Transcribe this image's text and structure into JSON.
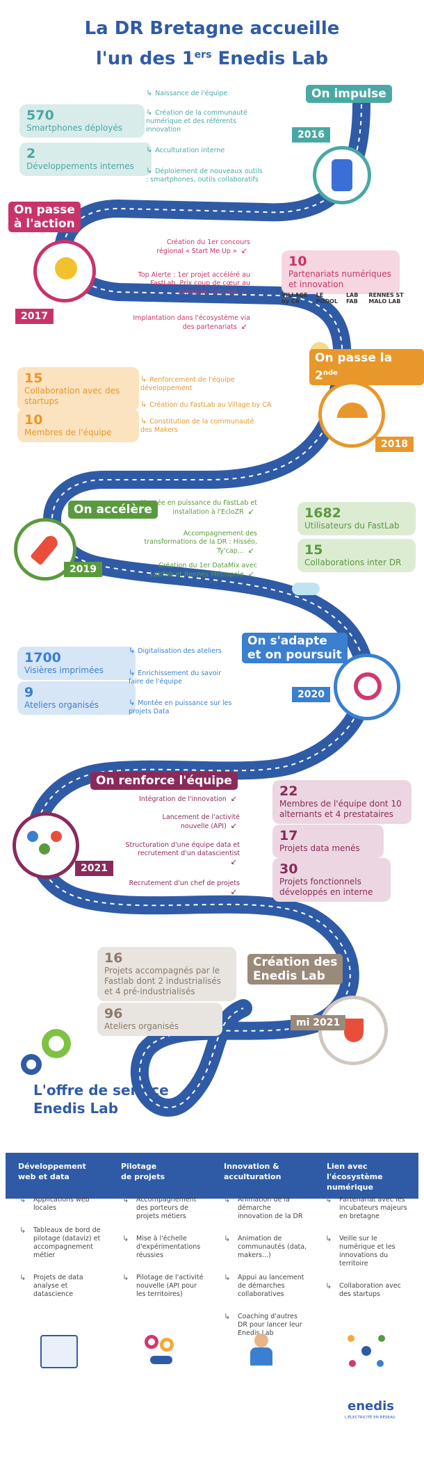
{
  "title": {
    "line1": "La DR Bretagne accueille",
    "line2_pre": "l'un des 1",
    "line2_sup": "ers",
    "line2_post": " Enedis Lab"
  },
  "colors": {
    "road": "#2f5ba6",
    "teal": "#4aa8a4",
    "pink": "#c8336a",
    "orange": "#e8972a",
    "green": "#5a9a3e",
    "blue": "#3a7fd0",
    "plum": "#8a2a5a",
    "taupe": "#9a8a7a"
  },
  "sections": [
    {
      "id": "impulse",
      "label": "On impulse",
      "year": "2016",
      "icon": "smartphone-icon",
      "stats": [
        {
          "n": "570",
          "t": "Smartphones déployés"
        },
        {
          "n": "2",
          "t": "Développements internes"
        }
      ],
      "items": [
        "Naissance de l'équipe",
        "Création de la communauté numérique et des référents innovation",
        "Acculturation interne",
        "Déploiement de nouveaux outils : smartphones, outils collaboratifs"
      ]
    },
    {
      "id": "action",
      "label_1": "On passe",
      "label_2": "à l'action",
      "year": "2017",
      "icon": "lightbulb-gear-icon",
      "stats": [
        {
          "n": "10",
          "t": "Partenariats numériques et innovation"
        }
      ],
      "items": [
        "Création du 1er concours régional « Start Me Up »",
        "Top Alerte : 1er projet accéléré au FastLab. Prix coup de cœur au concours national",
        "Implantation dans l'écosystème via des partenariats"
      ],
      "logos": [
        "VILLAGE by CA",
        "LE POOOL",
        "LAB FAB",
        "RENNES ST MALO LAB"
      ]
    },
    {
      "id": "seconde",
      "label_pre": "On passe la 2",
      "label_sup": "nde",
      "year": "2018",
      "icon": "speedometer-icon",
      "stats": [
        {
          "n": "15",
          "t": "Collaboration avec des startups"
        },
        {
          "n": "10",
          "t": "Membres de l'équipe"
        }
      ],
      "items": [
        "Renforcement de l'équipe développement",
        "Création du FastLab au Village by CA",
        "Constitution de la communauté des Makers"
      ]
    },
    {
      "id": "accelere",
      "label": "On accélère",
      "year": "2019",
      "icon": "rocket-icon",
      "stats": [
        {
          "n": "1682",
          "t": "Utilisateurs du FastLab"
        },
        {
          "n": "15",
          "t": "Collaborations inter DR"
        }
      ],
      "items": [
        "Montée en puissance du FastLab et installation à l'EcloZR",
        "Accompagnement des transformations de la DR : Hisséo, Ty'cap...",
        "Création du 1er DataMix avec LabFab et Rennes Métropole"
      ]
    },
    {
      "id": "adapte",
      "label_1": "On s'adapte",
      "label_2": "et on poursuit",
      "year": "2020",
      "icon": "refresh-gear-icon",
      "stats": [
        {
          "n": "1700",
          "t": "Visières imprimées"
        },
        {
          "n": "9",
          "t": "Ateliers organisés"
        }
      ],
      "items": [
        "Digitalisation des ateliers",
        "Enrichissement du savoir faire de l'équipe",
        "Montée en puissance sur les projets Data"
      ]
    },
    {
      "id": "renforce",
      "label": "On renforce l'équipe",
      "year": "2021",
      "icon": "team-network-icon",
      "stats": [
        {
          "n": "22",
          "t": "Membres de l'équipe dont 10 alternants et 4 prestataires"
        },
        {
          "n": "17",
          "t": "Projets data menés"
        },
        {
          "n": "30",
          "t": "Projets fonctionnels développés en interne"
        }
      ],
      "items": [
        "Intégration de l'innovation",
        "Lancement de l'activité nouvelle (API)",
        "Structuration d'une équipe data et recrutement d'un datascientist",
        "Recrutement d'un chef de projets"
      ]
    },
    {
      "id": "creation",
      "label_1": "Création des",
      "label_2": "Enedis Lab",
      "year": "mi 2021",
      "icon": "lab-flask-icon",
      "stats": [
        {
          "n": "16",
          "t": "Projets accompagnés par le Fastlab dont 2 industrialisés et 4 pré-industrialisés"
        },
        {
          "n": "96",
          "t": "Ateliers organisés"
        }
      ]
    }
  ],
  "offer": {
    "title_1": "L'offre de service",
    "title_2": "Enedis Lab"
  },
  "services": [
    {
      "head_1": "Développement",
      "head_2": "web et data",
      "icon": "dashboard-chart-icon",
      "items": [
        "Applications web locales",
        "Tableaux de bord de pilotage (dataviz) et accompagnement métier",
        "Projets de data analyse et datascience"
      ]
    },
    {
      "head_1": "Pilotage",
      "head_2": "de projets",
      "icon": "gears-hand-icon",
      "items": [
        "Accompagnement des porteurs de projets métiers",
        "Mise à l'échelle d'expérimentations réussies",
        "Pilotage de l'activité nouvelle (API pour les territoires)"
      ]
    },
    {
      "head_1": "Innovation &",
      "head_2": "acculturation",
      "icon": "presenter-icon",
      "items": [
        "Animation de la démarche innovation de la DR",
        "Animation de communautés (data, makers...)",
        "Appui au lancement de démarches collaboratives",
        "Coaching d'autres DR pour lancer leur Enedis Lab"
      ]
    },
    {
      "head_1": "Lien avec l'écosystème",
      "head_2": "numérique",
      "icon": "network-people-icon",
      "items": [
        "Partenariat avec les incubateurs majeurs en bretagne",
        "Veille sur le numérique et les innovations du territoire",
        "Collaboration avec des startups"
      ]
    }
  ],
  "footer": {
    "brand": "enedis",
    "tagline": "L'ÉLECTRICITÉ EN RÉSEAU"
  }
}
